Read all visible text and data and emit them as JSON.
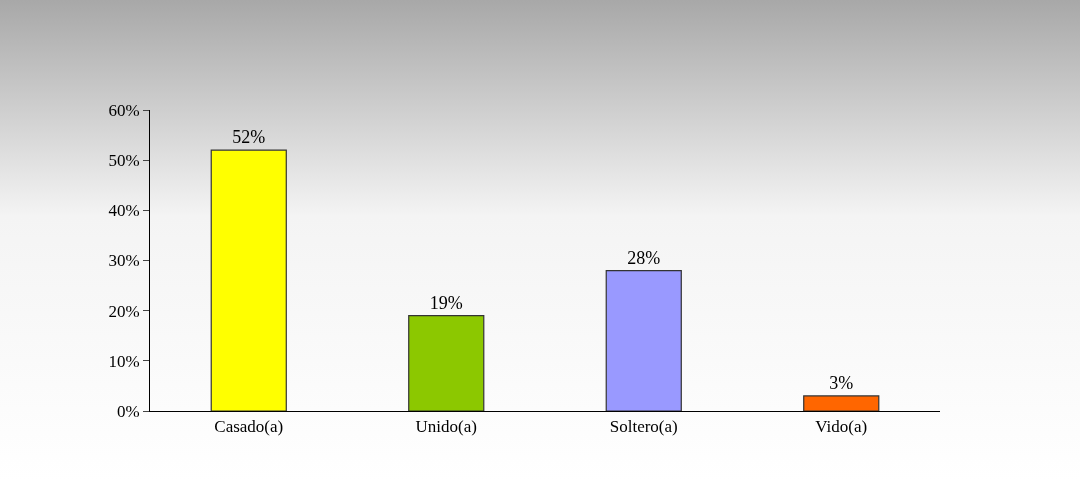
{
  "chart_data": {
    "type": "bar",
    "categories": [
      "Casado(a)",
      "Unido(a)",
      "Soltero(a)",
      "Vido(a)"
    ],
    "values": [
      52,
      19,
      28,
      3
    ],
    "colors": [
      "#ffff00",
      "#8cc800",
      "#9999ff",
      "#ff6600"
    ],
    "value_labels": [
      "52%",
      "19%",
      "28%",
      "3%"
    ],
    "ylim": [
      0,
      60
    ],
    "yticks": [
      {
        "value": 0,
        "label": "0%"
      },
      {
        "value": 10,
        "label": "10%"
      },
      {
        "value": 20,
        "label": "20%"
      },
      {
        "value": 30,
        "label": "30%"
      },
      {
        "value": 40,
        "label": "40%"
      },
      {
        "value": 50,
        "label": "50%"
      },
      {
        "value": 60,
        "label": "60%"
      }
    ],
    "grid": false
  }
}
